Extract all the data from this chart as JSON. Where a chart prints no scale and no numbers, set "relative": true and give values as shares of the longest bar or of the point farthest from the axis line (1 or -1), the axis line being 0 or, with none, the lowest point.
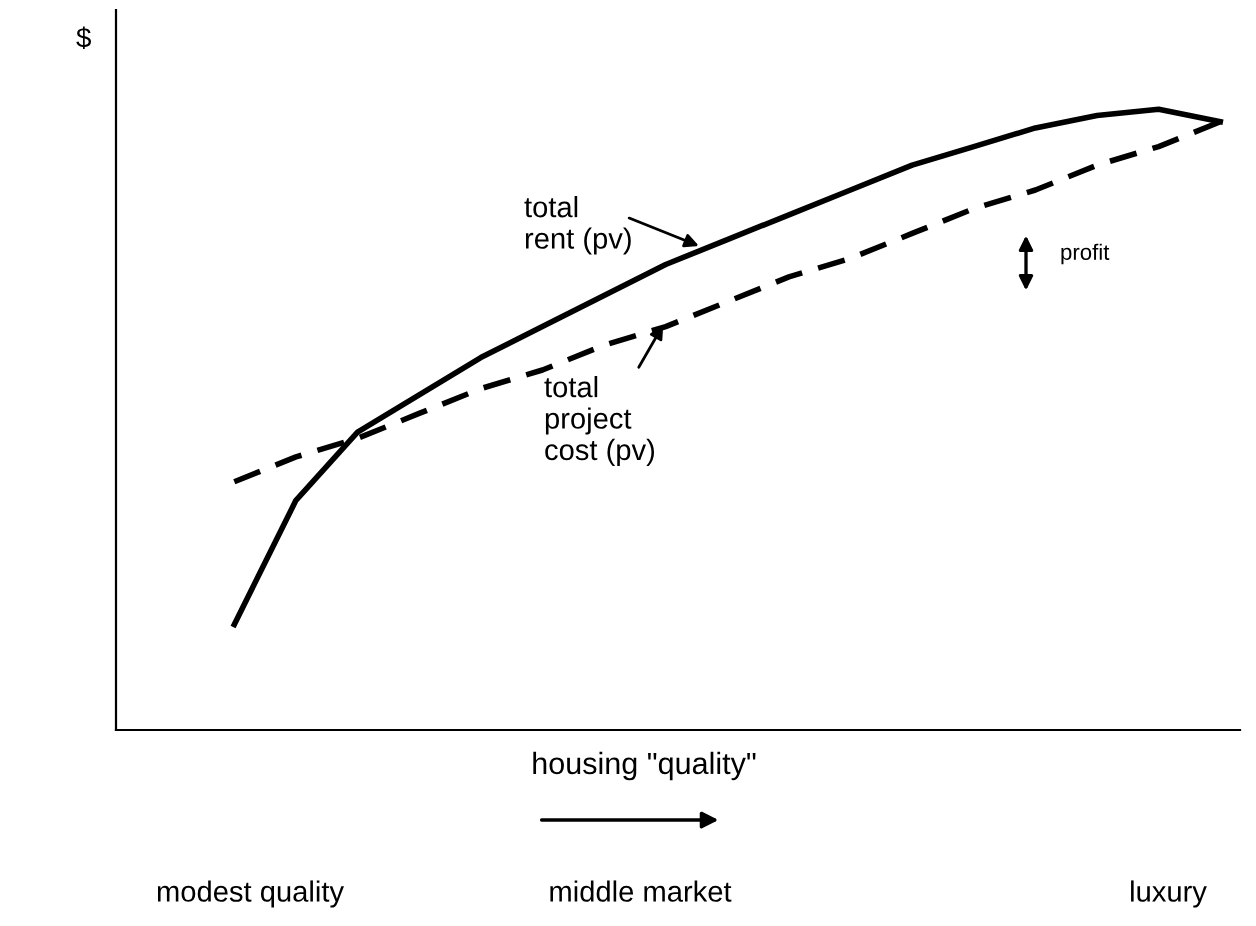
{
  "chart_data": {
    "type": "line",
    "relative": true,
    "ylabel": "$",
    "xlabel": "housing \"quality\"",
    "categories": [
      null,
      null,
      null,
      null,
      null,
      null,
      null,
      null,
      null,
      null,
      null,
      null,
      null,
      null,
      null,
      null,
      null
    ],
    "series": [
      {
        "color": "#000000",
        "line_style": "solid",
        "values": [
          0.17,
          0.37,
          0.48,
          0.54,
          0.6,
          0.65,
          0.7,
          0.75,
          0.79,
          0.83,
          0.87,
          0.91,
          0.94,
          0.97,
          0.99,
          1.0,
          0.98
        ]
      },
      {
        "color": "#000000",
        "line_style": "dashed",
        "values": [
          0.4,
          0.44,
          0.47,
          0.51,
          0.55,
          0.58,
          0.62,
          0.65,
          0.69,
          0.73,
          0.76,
          0.8,
          0.84,
          0.87,
          0.91,
          0.94,
          0.98
        ]
      }
    ],
    "annotations": [
      "total\nrent (pv)",
      "total\nproject\ncost (pv)",
      "profit",
      "modest quality",
      "middle market",
      "luxury"
    ],
    "legend": false,
    "grid": false,
    "marker": "none"
  }
}
